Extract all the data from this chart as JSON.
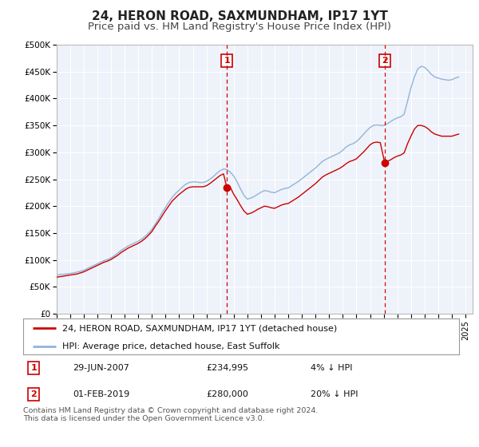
{
  "title": "24, HERON ROAD, SAXMUNDHAM, IP17 1YT",
  "subtitle": "Price paid vs. HM Land Registry's House Price Index (HPI)",
  "title_fontsize": 11,
  "subtitle_fontsize": 9.5,
  "background_color": "#ffffff",
  "plot_bg_color": "#eef2fa",
  "grid_color": "#ffffff",
  "hpi_color": "#92b4d8",
  "price_color": "#cc0000",
  "ylim": [
    0,
    500000
  ],
  "ytick_values": [
    0,
    50000,
    100000,
    150000,
    200000,
    250000,
    300000,
    350000,
    400000,
    450000,
    500000
  ],
  "ytick_labels": [
    "£0",
    "£50K",
    "£100K",
    "£150K",
    "£200K",
    "£250K",
    "£300K",
    "£350K",
    "£400K",
    "£450K",
    "£500K"
  ],
  "xmin": 1995.0,
  "xmax": 2025.5,
  "xtick_years": [
    1995,
    1996,
    1997,
    1998,
    1999,
    2000,
    2001,
    2002,
    2003,
    2004,
    2005,
    2006,
    2007,
    2008,
    2009,
    2010,
    2011,
    2012,
    2013,
    2014,
    2015,
    2016,
    2017,
    2018,
    2019,
    2020,
    2021,
    2022,
    2023,
    2024,
    2025
  ],
  "marker1_x": 2007.49,
  "marker1_y": 234995,
  "marker1_label": "1",
  "marker1_date": "29-JUN-2007",
  "marker1_price": "£234,995",
  "marker1_hpi": "4% ↓ HPI",
  "marker2_x": 2019.08,
  "marker2_y": 280000,
  "marker2_label": "2",
  "marker2_date": "01-FEB-2019",
  "marker2_price": "£280,000",
  "marker2_hpi": "20% ↓ HPI",
  "legend_line1": "24, HERON ROAD, SAXMUNDHAM, IP17 1YT (detached house)",
  "legend_line2": "HPI: Average price, detached house, East Suffolk",
  "footnote": "Contains HM Land Registry data © Crown copyright and database right 2024.\nThis data is licensed under the Open Government Licence v3.0.",
  "hpi_data_x": [
    1995.0,
    1995.25,
    1995.5,
    1995.75,
    1996.0,
    1996.25,
    1996.5,
    1996.75,
    1997.0,
    1997.25,
    1997.5,
    1997.75,
    1998.0,
    1998.25,
    1998.5,
    1998.75,
    1999.0,
    1999.25,
    1999.5,
    1999.75,
    2000.0,
    2000.25,
    2000.5,
    2000.75,
    2001.0,
    2001.25,
    2001.5,
    2001.75,
    2002.0,
    2002.25,
    2002.5,
    2002.75,
    2003.0,
    2003.25,
    2003.5,
    2003.75,
    2004.0,
    2004.25,
    2004.5,
    2004.75,
    2005.0,
    2005.25,
    2005.5,
    2005.75,
    2006.0,
    2006.25,
    2006.5,
    2006.75,
    2007.0,
    2007.25,
    2007.5,
    2007.75,
    2008.0,
    2008.25,
    2008.5,
    2008.75,
    2009.0,
    2009.25,
    2009.5,
    2009.75,
    2010.0,
    2010.25,
    2010.5,
    2010.75,
    2011.0,
    2011.25,
    2011.5,
    2011.75,
    2012.0,
    2012.25,
    2012.5,
    2012.75,
    2013.0,
    2013.25,
    2013.5,
    2013.75,
    2014.0,
    2014.25,
    2014.5,
    2014.75,
    2015.0,
    2015.25,
    2015.5,
    2015.75,
    2016.0,
    2016.25,
    2016.5,
    2016.75,
    2017.0,
    2017.25,
    2017.5,
    2017.75,
    2018.0,
    2018.25,
    2018.5,
    2018.75,
    2019.0,
    2019.25,
    2019.5,
    2019.75,
    2020.0,
    2020.25,
    2020.5,
    2020.75,
    2021.0,
    2021.25,
    2021.5,
    2021.75,
    2022.0,
    2022.25,
    2022.5,
    2022.75,
    2023.0,
    2023.25,
    2023.5,
    2023.75,
    2024.0,
    2024.25,
    2024.5
  ],
  "hpi_data_y": [
    72000,
    73000,
    73500,
    74000,
    75000,
    76000,
    77500,
    79000,
    81000,
    84000,
    87000,
    90000,
    93000,
    96000,
    99000,
    101000,
    104000,
    108000,
    113000,
    118000,
    122000,
    126000,
    129000,
    132000,
    135000,
    139000,
    144000,
    150000,
    157000,
    167000,
    177000,
    188000,
    198000,
    208000,
    217000,
    224000,
    230000,
    236000,
    241000,
    244000,
    245000,
    245000,
    244000,
    244000,
    246000,
    250000,
    255000,
    261000,
    266000,
    269000,
    268000,
    263000,
    256000,
    245000,
    232000,
    220000,
    213000,
    215000,
    218000,
    222000,
    226000,
    229000,
    228000,
    226000,
    225000,
    228000,
    231000,
    233000,
    234000,
    238000,
    242000,
    246000,
    251000,
    256000,
    261000,
    266000,
    271000,
    277000,
    283000,
    287000,
    290000,
    293000,
    296000,
    299000,
    304000,
    310000,
    314000,
    316000,
    320000,
    326000,
    333000,
    340000,
    346000,
    350000,
    351000,
    350000,
    350000,
    353000,
    357000,
    361000,
    364000,
    366000,
    371000,
    395000,
    420000,
    440000,
    455000,
    460000,
    458000,
    452000,
    445000,
    440000,
    438000,
    436000,
    435000,
    434000,
    435000,
    438000,
    440000
  ],
  "price_data_x": [
    1995.0,
    1995.25,
    1995.5,
    1995.75,
    1996.0,
    1996.25,
    1996.5,
    1996.75,
    1997.0,
    1997.25,
    1997.5,
    1997.75,
    1998.0,
    1998.25,
    1998.5,
    1998.75,
    1999.0,
    1999.25,
    1999.5,
    1999.75,
    2000.0,
    2000.25,
    2000.5,
    2000.75,
    2001.0,
    2001.25,
    2001.5,
    2001.75,
    2002.0,
    2002.25,
    2002.5,
    2002.75,
    2003.0,
    2003.25,
    2003.5,
    2003.75,
    2004.0,
    2004.25,
    2004.5,
    2004.75,
    2005.0,
    2005.25,
    2005.5,
    2005.75,
    2006.0,
    2006.25,
    2006.5,
    2006.75,
    2007.0,
    2007.25,
    2007.49,
    2007.75,
    2008.0,
    2008.25,
    2008.5,
    2008.75,
    2009.0,
    2009.25,
    2009.5,
    2009.75,
    2010.0,
    2010.25,
    2010.5,
    2010.75,
    2011.0,
    2011.25,
    2011.5,
    2011.75,
    2012.0,
    2012.25,
    2012.5,
    2012.75,
    2013.0,
    2013.25,
    2013.5,
    2013.75,
    2014.0,
    2014.25,
    2014.5,
    2014.75,
    2015.0,
    2015.25,
    2015.5,
    2015.75,
    2016.0,
    2016.25,
    2016.5,
    2016.75,
    2017.0,
    2017.25,
    2017.5,
    2017.75,
    2018.0,
    2018.25,
    2018.5,
    2018.75,
    2019.08,
    2019.25,
    2019.5,
    2019.75,
    2020.0,
    2020.25,
    2020.5,
    2020.75,
    2021.0,
    2021.25,
    2021.5,
    2021.75,
    2022.0,
    2022.25,
    2022.5,
    2022.75,
    2023.0,
    2023.25,
    2023.5,
    2023.75,
    2024.0,
    2024.25,
    2024.5
  ],
  "price_data_y": [
    68000,
    69000,
    70000,
    71000,
    72000,
    73000,
    74000,
    76000,
    78000,
    81000,
    84000,
    87000,
    90000,
    93000,
    96000,
    98000,
    101000,
    105000,
    109000,
    114000,
    118000,
    122000,
    125000,
    128000,
    131000,
    135000,
    140000,
    146000,
    153000,
    163000,
    172000,
    182000,
    192000,
    201000,
    210000,
    216000,
    222000,
    227000,
    232000,
    235000,
    236000,
    236000,
    236000,
    236000,
    238000,
    242000,
    247000,
    252000,
    257000,
    260000,
    234995,
    234995,
    222000,
    212000,
    201000,
    191000,
    185000,
    187000,
    190000,
    194000,
    197000,
    200000,
    199000,
    197000,
    196000,
    199000,
    202000,
    204000,
    205000,
    209000,
    213000,
    217000,
    222000,
    227000,
    232000,
    237000,
    242000,
    248000,
    254000,
    258000,
    261000,
    264000,
    267000,
    270000,
    274000,
    279000,
    283000,
    285000,
    288000,
    294000,
    300000,
    307000,
    314000,
    318000,
    319000,
    318000,
    280000,
    283000,
    286000,
    290000,
    293000,
    295000,
    299000,
    316000,
    330000,
    343000,
    350000,
    350000,
    348000,
    344000,
    338000,
    334000,
    332000,
    330000,
    330000,
    330000,
    330000,
    332000,
    334000
  ]
}
